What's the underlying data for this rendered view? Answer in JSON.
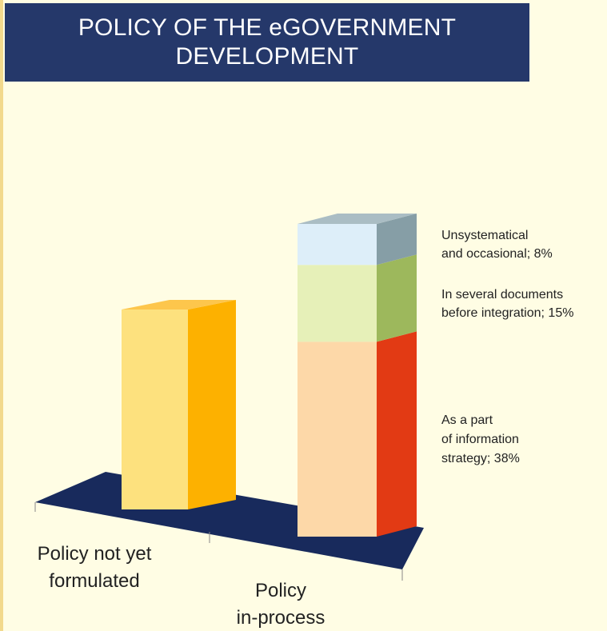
{
  "title": {
    "line1": "POLICY OF THE eGOVERNMENT",
    "line2": "DEVELOPMENT"
  },
  "chart_data": {
    "type": "bar",
    "title": "POLICY OF THE eGOVERNMENT DEVELOPMENT",
    "categories": [
      "Policy not yet formulated",
      "Policy in-process"
    ],
    "category_label_lines": [
      [
        "Policy not yet",
        "formulated"
      ],
      [
        "Policy",
        "in-process"
      ]
    ],
    "stacked": true,
    "three_d": true,
    "value_unit": "%",
    "series": [
      {
        "name": "Policy not yet formulated",
        "values": [
          39,
          null
        ],
        "colors": {
          "front": "#fde17e",
          "side": "#fdb100",
          "top": "#fdc64c"
        }
      },
      {
        "name": "As a part of information strategy",
        "values": [
          null,
          38
        ],
        "label_lines": [
          "As a part",
          "of information",
          "strategy; 38%"
        ],
        "colors": {
          "front": "#fdd8a8",
          "side": "#e23a14",
          "top": "#f1a07c"
        }
      },
      {
        "name": "In several documents before integration",
        "values": [
          null,
          15
        ],
        "label_lines": [
          "In several documents",
          "before integration; 15%"
        ],
        "colors": {
          "front": "#e6f0b8",
          "side": "#9db85c",
          "top": "#c6d88e"
        }
      },
      {
        "name": "Unsystematical and occasional",
        "values": [
          null,
          8
        ],
        "label_lines": [
          "Unsystematical",
          "and occasional; 8%"
        ],
        "colors": {
          "front": "#ddeef9",
          "side": "#869ea6",
          "top": "#aabdc4"
        }
      }
    ],
    "floor_color": "#182a5c",
    "legend": "none",
    "grid": false
  }
}
